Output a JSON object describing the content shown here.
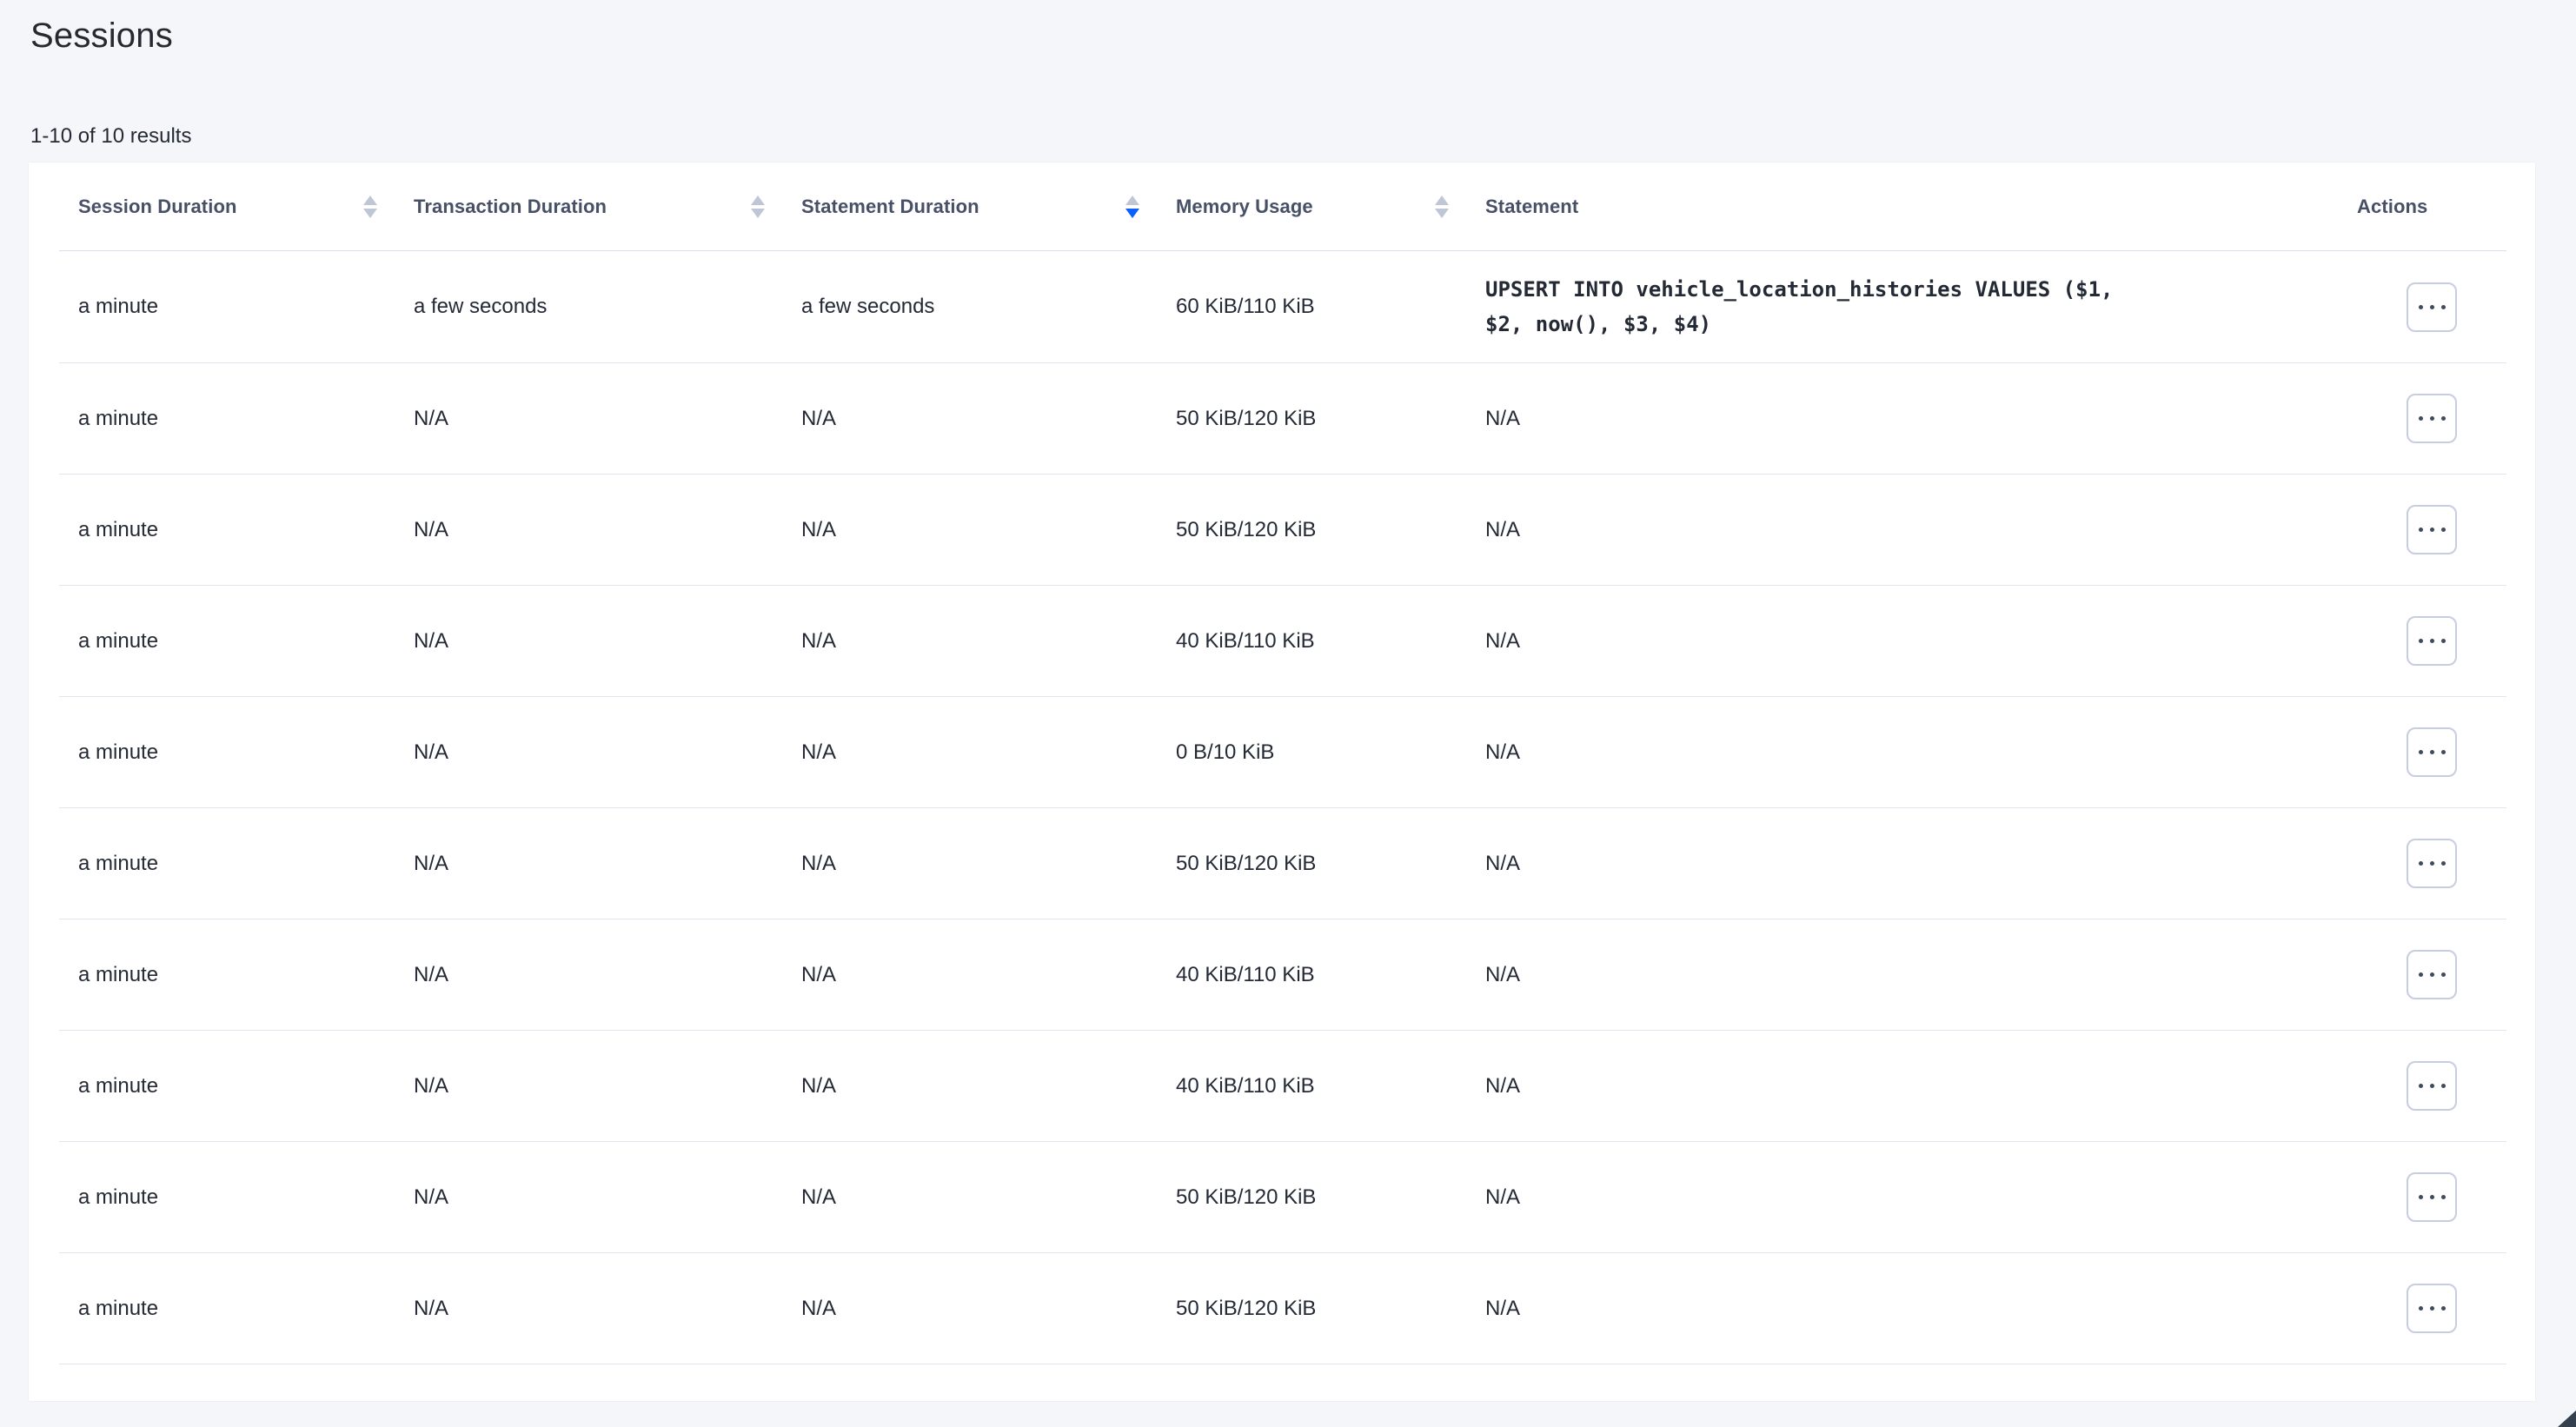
{
  "page": {
    "title": "Sessions",
    "results_summary": "1-10 of 10 results"
  },
  "colors": {
    "page_background": "#f4f6fa",
    "card_background": "#ffffff",
    "sort_active_accent": "#0b5fff",
    "sort_inactive": "#bfc7d6",
    "header_text": "#475066",
    "body_text": "#242a35",
    "row_divider": "#e0e5ee"
  },
  "icons": {
    "sort": "sort-arrows-icon",
    "actions": "ellipsis-icon"
  },
  "table": {
    "columns": [
      {
        "label": "Session Duration",
        "sortable": true,
        "sort": "none"
      },
      {
        "label": "Transaction Duration",
        "sortable": true,
        "sort": "none"
      },
      {
        "label": "Statement Duration",
        "sortable": true,
        "sort": "desc"
      },
      {
        "label": "Memory Usage",
        "sortable": true,
        "sort": "none"
      },
      {
        "label": "Statement",
        "sortable": false,
        "sort": "none"
      },
      {
        "label": "Actions",
        "sortable": false,
        "sort": "none"
      }
    ],
    "rows": [
      {
        "session_duration": "a minute",
        "transaction_duration": "a few seconds",
        "statement_duration": "a few seconds",
        "memory_usage": "60 KiB/110 KiB",
        "statement": "UPSERT INTO vehicle_location_histories VALUES ($1, $2, now(), $3, $4)",
        "statement_is_sql": true
      },
      {
        "session_duration": "a minute",
        "transaction_duration": "N/A",
        "statement_duration": "N/A",
        "memory_usage": "50 KiB/120 KiB",
        "statement": "N/A",
        "statement_is_sql": false
      },
      {
        "session_duration": "a minute",
        "transaction_duration": "N/A",
        "statement_duration": "N/A",
        "memory_usage": "50 KiB/120 KiB",
        "statement": "N/A",
        "statement_is_sql": false
      },
      {
        "session_duration": "a minute",
        "transaction_duration": "N/A",
        "statement_duration": "N/A",
        "memory_usage": "40 KiB/110 KiB",
        "statement": "N/A",
        "statement_is_sql": false
      },
      {
        "session_duration": "a minute",
        "transaction_duration": "N/A",
        "statement_duration": "N/A",
        "memory_usage": "0 B/10 KiB",
        "statement": "N/A",
        "statement_is_sql": false
      },
      {
        "session_duration": "a minute",
        "transaction_duration": "N/A",
        "statement_duration": "N/A",
        "memory_usage": "50 KiB/120 KiB",
        "statement": "N/A",
        "statement_is_sql": false
      },
      {
        "session_duration": "a minute",
        "transaction_duration": "N/A",
        "statement_duration": "N/A",
        "memory_usage": "40 KiB/110 KiB",
        "statement": "N/A",
        "statement_is_sql": false
      },
      {
        "session_duration": "a minute",
        "transaction_duration": "N/A",
        "statement_duration": "N/A",
        "memory_usage": "40 KiB/110 KiB",
        "statement": "N/A",
        "statement_is_sql": false
      },
      {
        "session_duration": "a minute",
        "transaction_duration": "N/A",
        "statement_duration": "N/A",
        "memory_usage": "50 KiB/120 KiB",
        "statement": "N/A",
        "statement_is_sql": false
      },
      {
        "session_duration": "a minute",
        "transaction_duration": "N/A",
        "statement_duration": "N/A",
        "memory_usage": "50 KiB/120 KiB",
        "statement": "N/A",
        "statement_is_sql": false
      }
    ]
  }
}
